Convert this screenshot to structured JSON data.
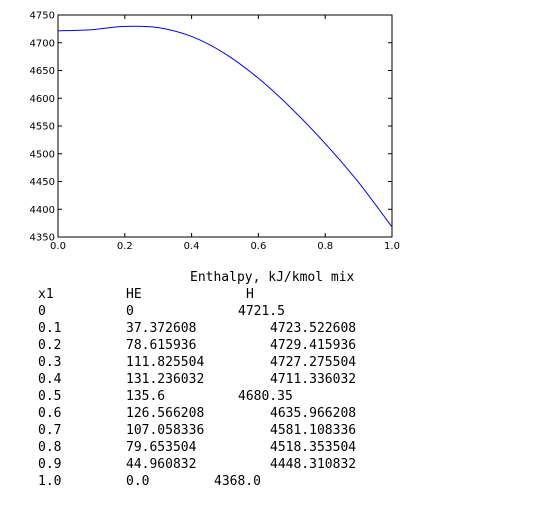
{
  "chart_data": {
    "type": "line",
    "title": "",
    "xlabel": "",
    "ylabel": "",
    "xlim": [
      0.0,
      1.0
    ],
    "ylim": [
      4350,
      4750
    ],
    "x_ticks": [
      "0.0",
      "0.2",
      "0.4",
      "0.6",
      "0.8",
      "1.0"
    ],
    "y_ticks": [
      "4350",
      "4400",
      "4450",
      "4500",
      "4550",
      "4600",
      "4650",
      "4700",
      "4750"
    ],
    "grid": false,
    "series": [
      {
        "color": "#0000ff",
        "x": [
          0.0,
          0.1,
          0.2,
          0.3,
          0.4,
          0.5,
          0.6,
          0.7,
          0.8,
          0.9,
          1.0
        ],
        "y": [
          4721.5,
          4723.522608,
          4729.415936,
          4727.275504,
          4711.336032,
          4680.35,
          4635.966208,
          4581.108336,
          4518.353504,
          4448.310832,
          4368.0
        ]
      }
    ]
  },
  "table": {
    "title": "Enthalpy, kJ/kmol mix",
    "headers": [
      "x1",
      "HE",
      "H"
    ],
    "rows": [
      [
        "0",
        "0",
        "4721.5"
      ],
      [
        "0.1",
        "37.372608",
        "4723.522608"
      ],
      [
        "0.2",
        "78.615936",
        "4729.415936"
      ],
      [
        "0.3",
        "111.825504",
        "4727.275504"
      ],
      [
        "0.4",
        "131.236032",
        "4711.336032"
      ],
      [
        "0.5",
        "135.6",
        "4680.35"
      ],
      [
        "0.6",
        "126.566208",
        "4635.966208"
      ],
      [
        "0.7",
        "107.058336",
        "4581.108336"
      ],
      [
        "0.8",
        "79.653504",
        "4518.353504"
      ],
      [
        "0.9",
        "44.960832",
        "4448.310832"
      ],
      [
        "1.0",
        "0.0",
        "4368.0"
      ]
    ]
  }
}
